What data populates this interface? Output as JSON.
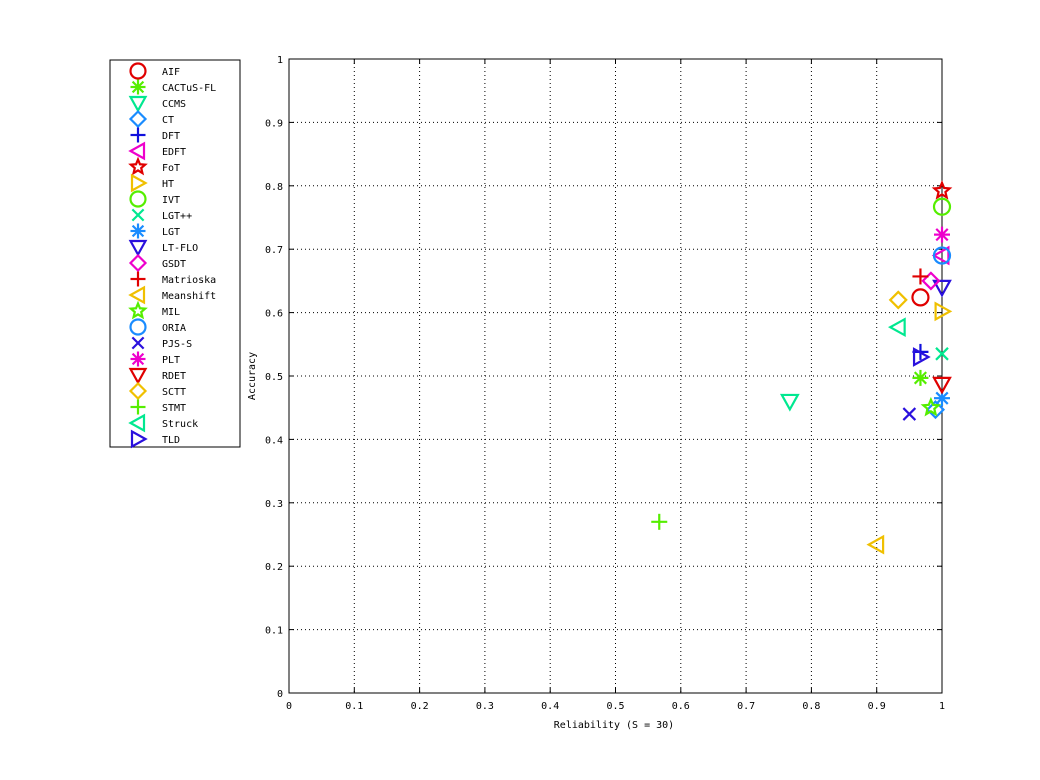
{
  "chart_data": {
    "type": "scatter",
    "title": "",
    "xlabel": "Reliability (S = 30)",
    "ylabel": "Accuracy",
    "xlim": [
      0,
      1
    ],
    "ylim": [
      0,
      1
    ],
    "x_ticks": [
      "0",
      "0.1",
      "0.2",
      "0.3",
      "0.4",
      "0.5",
      "0.6",
      "0.7",
      "0.8",
      "0.9",
      "1"
    ],
    "y_ticks": [
      "0",
      "0.1",
      "0.2",
      "0.3",
      "0.4",
      "0.5",
      "0.6",
      "0.7",
      "0.8",
      "0.9",
      "1"
    ],
    "grid": true,
    "legend_position": "outside-left",
    "series": [
      {
        "name": "AIF",
        "marker": "circle",
        "color": "#e00000",
        "x": 0.967,
        "y": 0.624
      },
      {
        "name": "CACTuS-FL",
        "marker": "asterisk",
        "color": "#55ee00",
        "x": 0.967,
        "y": 0.497
      },
      {
        "name": "CCMS",
        "marker": "triangle-down",
        "color": "#00e890",
        "x": 0.767,
        "y": 0.46
      },
      {
        "name": "CT",
        "marker": "diamond",
        "color": "#1a8cff",
        "x": 0.99,
        "y": 0.447
      },
      {
        "name": "DFT",
        "marker": "plus",
        "color": "#1010dd",
        "x": 0.967,
        "y": 0.538
      },
      {
        "name": "EDFT",
        "marker": "triangle-left",
        "color": "#ee00cc",
        "x": 1.0,
        "y": 0.69
      },
      {
        "name": "FoT",
        "marker": "star",
        "color": "#e00000",
        "x": 1.0,
        "y": 0.792
      },
      {
        "name": "HT",
        "marker": "triangle-right",
        "color": "#f0c000",
        "x": 1.0,
        "y": 0.602
      },
      {
        "name": "IVT",
        "marker": "circle",
        "color": "#55ee00",
        "x": 1.0,
        "y": 0.767
      },
      {
        "name": "LGT++",
        "marker": "cross",
        "color": "#00e890",
        "x": 1.0,
        "y": 0.535
      },
      {
        "name": "LGT",
        "marker": "asterisk",
        "color": "#1a8cff",
        "x": 1.0,
        "y": 0.465
      },
      {
        "name": "LT-FLO",
        "marker": "triangle-down",
        "color": "#2a10dd",
        "x": 1.0,
        "y": 0.64
      },
      {
        "name": "GSDT",
        "marker": "diamond",
        "color": "#ee00cc",
        "x": 0.983,
        "y": 0.65
      },
      {
        "name": "Matrioska",
        "marker": "plus",
        "color": "#e00000",
        "x": 0.967,
        "y": 0.657
      },
      {
        "name": "Meanshift",
        "marker": "triangle-left",
        "color": "#f0c000",
        "x": 0.9,
        "y": 0.234
      },
      {
        "name": "MIL",
        "marker": "star",
        "color": "#55ee00",
        "x": 0.983,
        "y": 0.45
      },
      {
        "name": "ORIA",
        "marker": "circle",
        "color": "#1a8cff",
        "x": 1.0,
        "y": 0.69
      },
      {
        "name": "PJS-S",
        "marker": "cross",
        "color": "#2a10dd",
        "x": 0.95,
        "y": 0.44
      },
      {
        "name": "PLT",
        "marker": "asterisk",
        "color": "#ee00cc",
        "x": 1.0,
        "y": 0.723
      },
      {
        "name": "RDET",
        "marker": "triangle-down",
        "color": "#e00000",
        "x": 1.0,
        "y": 0.487
      },
      {
        "name": "SCTT",
        "marker": "diamond",
        "color": "#f0c000",
        "x": 0.933,
        "y": 0.62
      },
      {
        "name": "STMT",
        "marker": "plus",
        "color": "#55ee00",
        "x": 0.567,
        "y": 0.27
      },
      {
        "name": "Struck",
        "marker": "triangle-left",
        "color": "#00e890",
        "x": 0.933,
        "y": 0.577
      },
      {
        "name": "TLD",
        "marker": "triangle-right",
        "color": "#2a10dd",
        "x": 0.967,
        "y": 0.53
      }
    ]
  }
}
